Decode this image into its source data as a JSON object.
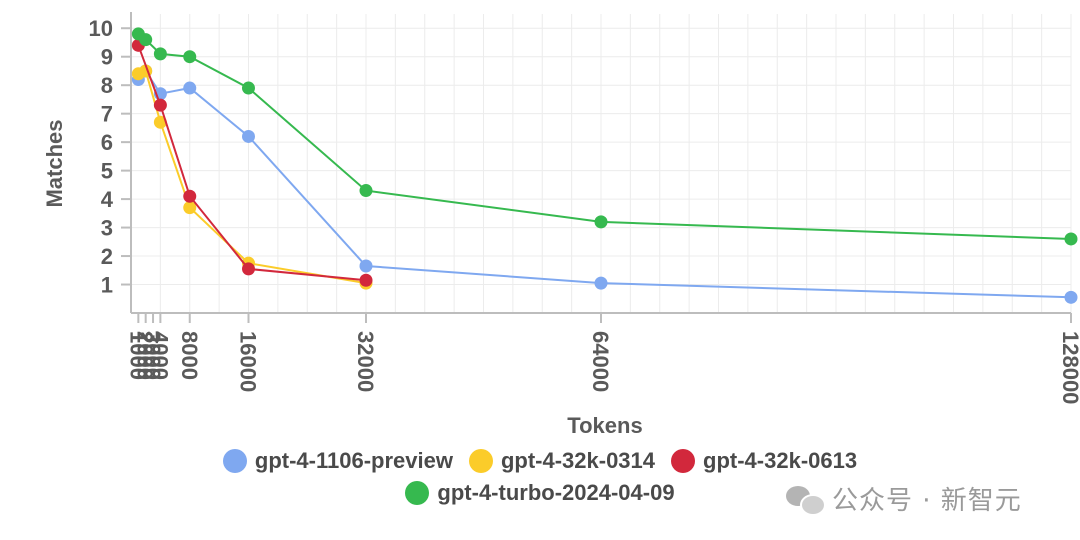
{
  "chart_data": {
    "type": "line",
    "xlabel": "Tokens",
    "ylabel": "Matches",
    "xlim": [
      0,
      128000
    ],
    "ylim": [
      0,
      10.5
    ],
    "x_ticks": [
      1000,
      2000,
      3000,
      4000,
      8000,
      16000,
      32000,
      64000,
      128000
    ],
    "x_tick_labels": [
      "1000",
      "2000",
      "3000",
      "4000",
      "8000",
      "16000",
      "32000",
      "64000",
      "128000"
    ],
    "y_ticks": [
      1,
      2,
      3,
      4,
      5,
      6,
      7,
      8,
      9,
      10
    ],
    "y_tick_labels": [
      "1",
      "2",
      "3",
      "4",
      "5",
      "6",
      "7",
      "8",
      "9",
      "10"
    ],
    "legend_position": "bottom",
    "series": [
      {
        "name": "gpt-4-1106-preview",
        "color": "#7fa8f0",
        "x": [
          1000,
          2000,
          4000,
          8000,
          16000,
          32000,
          64000,
          128000
        ],
        "values": [
          8.2,
          8.5,
          7.7,
          7.9,
          6.2,
          1.65,
          1.05,
          0.55
        ]
      },
      {
        "name": "gpt-4-32k-0314",
        "color": "#fbcc2a",
        "x": [
          1000,
          2000,
          4000,
          8000,
          16000,
          32000
        ],
        "values": [
          8.4,
          8.5,
          6.7,
          3.7,
          1.75,
          1.05
        ]
      },
      {
        "name": "gpt-4-32k-0613",
        "color": "#d2283c",
        "x": [
          1000,
          4000,
          8000,
          16000,
          32000
        ],
        "values": [
          9.4,
          7.3,
          4.1,
          1.55,
          1.15
        ]
      },
      {
        "name": "gpt-4-turbo-2024-04-09",
        "color": "#36b94f",
        "x": [
          1000,
          2000,
          4000,
          8000,
          16000,
          32000,
          64000,
          128000
        ],
        "values": [
          9.8,
          9.6,
          9.1,
          9.0,
          7.9,
          4.3,
          3.2,
          2.6
        ]
      }
    ]
  },
  "watermark": {
    "icon": "wechat-icon",
    "text": "公众号 · 新智元"
  }
}
